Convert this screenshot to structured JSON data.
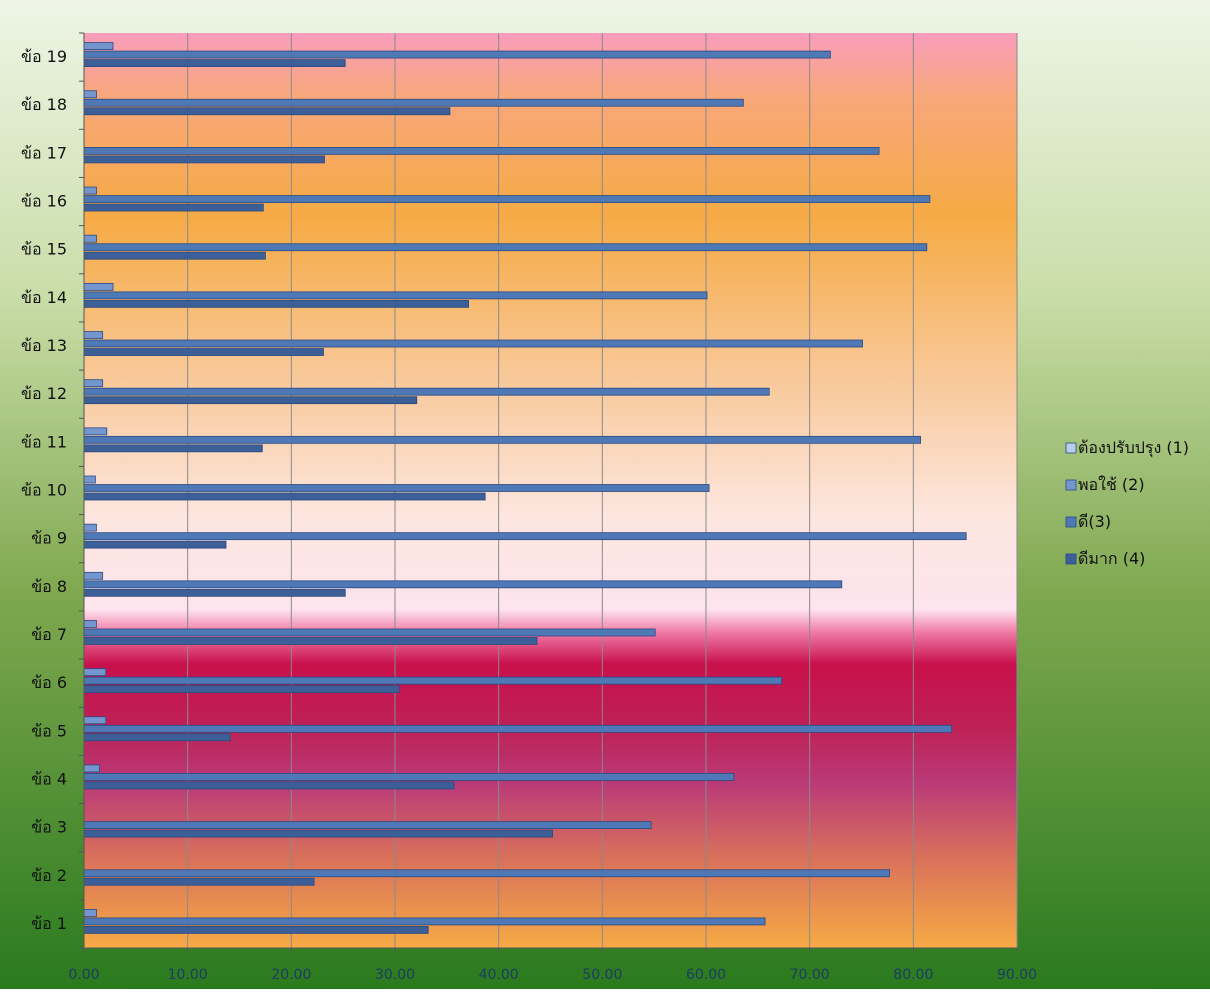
{
  "chart_data": {
    "type": "bar",
    "orientation": "horizontal",
    "categories": [
      "ข้อ 1",
      "ข้อ 2",
      "ข้อ 3",
      "ข้อ 4",
      "ข้อ 5",
      "ข้อ 6",
      "ข้อ 7",
      "ข้อ 8",
      "ข้อ 9",
      "ข้อ 10",
      "ข้อ 11",
      "ข้อ 12",
      "ข้อ 13",
      "ข้อ 14",
      "ข้อ 15",
      "ข้อ 16",
      "ข้อ 17",
      "ข้อ 18",
      "ข้อ 19"
    ],
    "series": [
      {
        "name": "ต้องปรับปรุง (1)",
        "color": "#b9cdec",
        "values": [
          0,
          0,
          0,
          0,
          0,
          0,
          0,
          0,
          0,
          0,
          0,
          0,
          0,
          0,
          0,
          0,
          0,
          0,
          0
        ]
      },
      {
        "name": "พอใช้ (2)",
        "color": "#7496cf",
        "values": [
          1.2,
          0,
          0,
          1.5,
          2.1,
          2.1,
          1.2,
          1.8,
          1.2,
          1.1,
          2.2,
          1.8,
          1.8,
          2.8,
          1.2,
          1.2,
          0,
          1.2,
          2.8
        ]
      },
      {
        "name": "ดี(3)",
        "color": "#4f78b6",
        "values": [
          65.7,
          77.7,
          54.7,
          62.7,
          83.7,
          67.3,
          55.1,
          73.1,
          85.1,
          60.3,
          80.7,
          66.1,
          75.1,
          60.1,
          81.3,
          81.6,
          76.7,
          63.6,
          72.0
        ]
      },
      {
        "name": "ดีมาก (4)",
        "color": "#3c5f98",
        "values": [
          33.2,
          22.2,
          45.2,
          35.7,
          14.1,
          30.4,
          43.7,
          25.2,
          13.7,
          38.7,
          17.2,
          32.1,
          23.1,
          37.1,
          17.5,
          17.3,
          23.2,
          35.3,
          25.2
        ]
      }
    ],
    "xlim": [
      0,
      90
    ],
    "xticks": [
      "0.00",
      "10.00",
      "20.00",
      "30.00",
      "40.00",
      "50.00",
      "60.00",
      "70.00",
      "80.00",
      "90.00"
    ],
    "grid": true,
    "legend_position": "right",
    "title": "",
    "xlabel": "",
    "ylabel": ""
  }
}
